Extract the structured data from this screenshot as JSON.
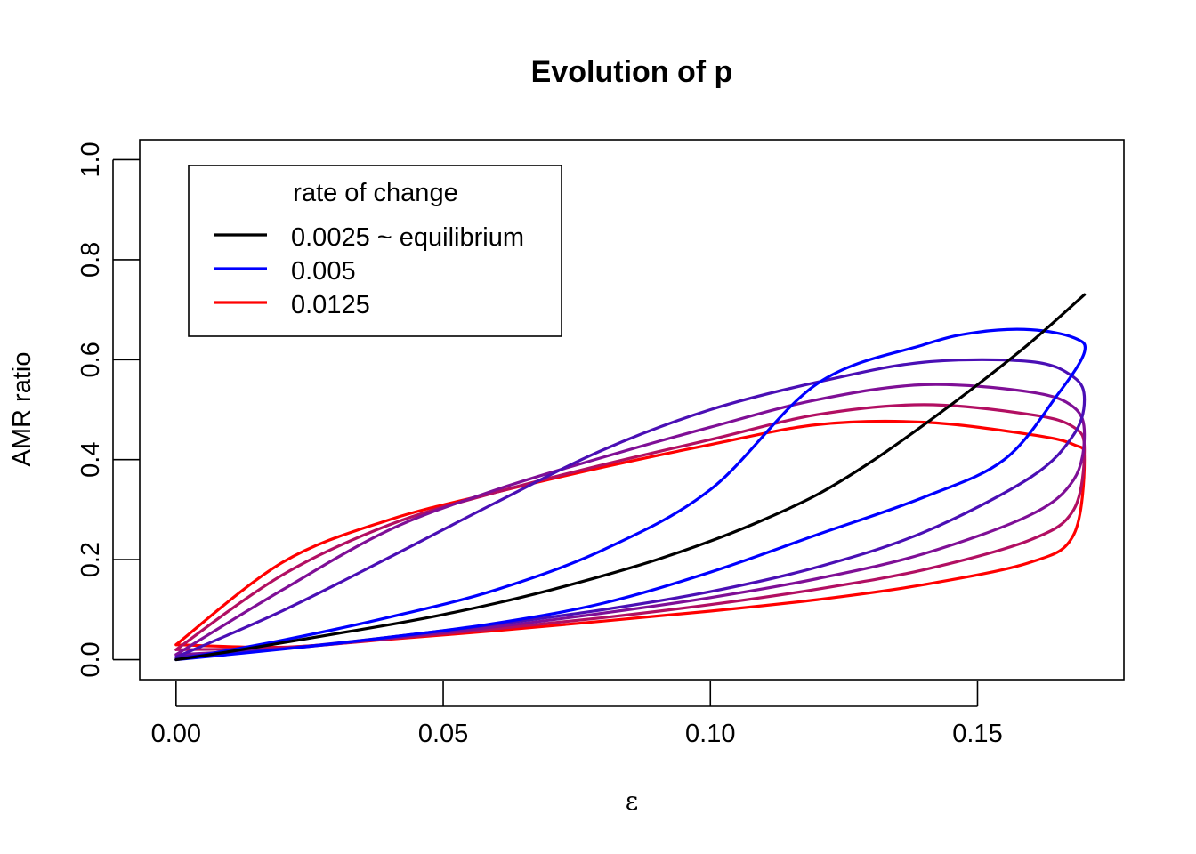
{
  "chart_data": {
    "type": "line",
    "title": "Evolution of p",
    "xlabel": "ε",
    "ylabel": "AMR ratio",
    "xlim": [
      -0.0068,
      0.1774
    ],
    "ylim": [
      -0.04,
      1.04
    ],
    "x_ticks": [
      0.0,
      0.05,
      0.1,
      0.15
    ],
    "x_tick_labels": [
      "0.00",
      "0.05",
      "0.10",
      "0.15"
    ],
    "y_ticks": [
      0.0,
      0.2,
      0.4,
      0.6,
      0.8,
      1.0
    ],
    "y_tick_labels": [
      "0.0",
      "0.2",
      "0.4",
      "0.6",
      "0.8",
      "1.0"
    ],
    "grid": false,
    "legend": {
      "title": "rate of change",
      "position": "top-left",
      "entries": [
        {
          "label": "0.0025 ~ equilibrium",
          "color": "#000000"
        },
        {
          "label": "0.005",
          "color": "#0000ff"
        },
        {
          "label": "0.0125",
          "color": "#ff0000"
        }
      ]
    },
    "series": [
      {
        "color": "#000000",
        "x": [
          0.0,
          0.01,
          0.02,
          0.03,
          0.04,
          0.05,
          0.06,
          0.07,
          0.08,
          0.09,
          0.1,
          0.11,
          0.12,
          0.13,
          0.14,
          0.15,
          0.16,
          0.17
        ],
        "y": [
          0.0,
          0.016,
          0.034,
          0.052,
          0.07,
          0.09,
          0.113,
          0.139,
          0.168,
          0.2,
          0.237,
          0.28,
          0.33,
          0.395,
          0.47,
          0.55,
          0.635,
          0.73
        ]
      },
      {
        "color": "#0000ff",
        "x": [
          0.0,
          0.02,
          0.04,
          0.06,
          0.08,
          0.1,
          0.12,
          0.14,
          0.155,
          0.165,
          0.17,
          0.168,
          0.16,
          0.15,
          0.14,
          0.12,
          0.1,
          0.08,
          0.06,
          0.04,
          0.02,
          0.0
        ],
        "y": [
          0.0,
          0.021,
          0.045,
          0.073,
          0.113,
          0.175,
          0.25,
          0.325,
          0.4,
          0.53,
          0.615,
          0.644,
          0.66,
          0.655,
          0.63,
          0.552,
          0.34,
          0.22,
          0.14,
          0.085,
          0.039,
          0.0
        ]
      },
      {
        "color": "#4a0fb5",
        "x": [
          0.0,
          0.02,
          0.04,
          0.06,
          0.08,
          0.1,
          0.12,
          0.14,
          0.16,
          0.168,
          0.17,
          0.168,
          0.16,
          0.14,
          0.12,
          0.1,
          0.08,
          0.06,
          0.04,
          0.02,
          0.0
        ],
        "y": [
          0.005,
          0.022,
          0.045,
          0.071,
          0.1,
          0.136,
          0.185,
          0.255,
          0.365,
          0.45,
          0.52,
          0.565,
          0.596,
          0.595,
          0.555,
          0.5,
          0.42,
          0.315,
          0.205,
          0.098,
          0.005
        ]
      },
      {
        "color": "#7f0f96",
        "x": [
          0.0,
          0.02,
          0.04,
          0.06,
          0.08,
          0.1,
          0.12,
          0.14,
          0.16,
          0.168,
          0.17,
          0.168,
          0.16,
          0.14,
          0.12,
          0.1,
          0.08,
          0.06,
          0.04,
          0.02,
          0.0
        ],
        "y": [
          0.01,
          0.022,
          0.043,
          0.066,
          0.093,
          0.124,
          0.162,
          0.212,
          0.29,
          0.36,
          0.45,
          0.505,
          0.535,
          0.55,
          0.52,
          0.465,
          0.405,
          0.34,
          0.26,
          0.14,
          0.01
        ]
      },
      {
        "color": "#b20f62",
        "x": [
          0.0,
          0.02,
          0.04,
          0.06,
          0.08,
          0.1,
          0.12,
          0.14,
          0.16,
          0.168,
          0.17,
          0.168,
          0.16,
          0.14,
          0.12,
          0.1,
          0.08,
          0.06,
          0.04,
          0.02,
          0.0
        ],
        "y": [
          0.02,
          0.024,
          0.042,
          0.062,
          0.084,
          0.11,
          0.141,
          0.18,
          0.24,
          0.3,
          0.42,
          0.465,
          0.49,
          0.51,
          0.49,
          0.44,
          0.39,
          0.335,
          0.27,
          0.17,
          0.02
        ]
      },
      {
        "color": "#ff0000",
        "x": [
          0.0,
          0.02,
          0.04,
          0.06,
          0.08,
          0.1,
          0.12,
          0.14,
          0.16,
          0.168,
          0.17,
          0.168,
          0.16,
          0.14,
          0.12,
          0.1,
          0.08,
          0.06,
          0.04,
          0.02,
          0.0
        ],
        "y": [
          0.03,
          0.025,
          0.041,
          0.058,
          0.077,
          0.097,
          0.12,
          0.15,
          0.195,
          0.25,
          0.4,
          0.43,
          0.45,
          0.475,
          0.47,
          0.43,
          0.385,
          0.335,
          0.28,
          0.195,
          0.03
        ]
      }
    ]
  }
}
